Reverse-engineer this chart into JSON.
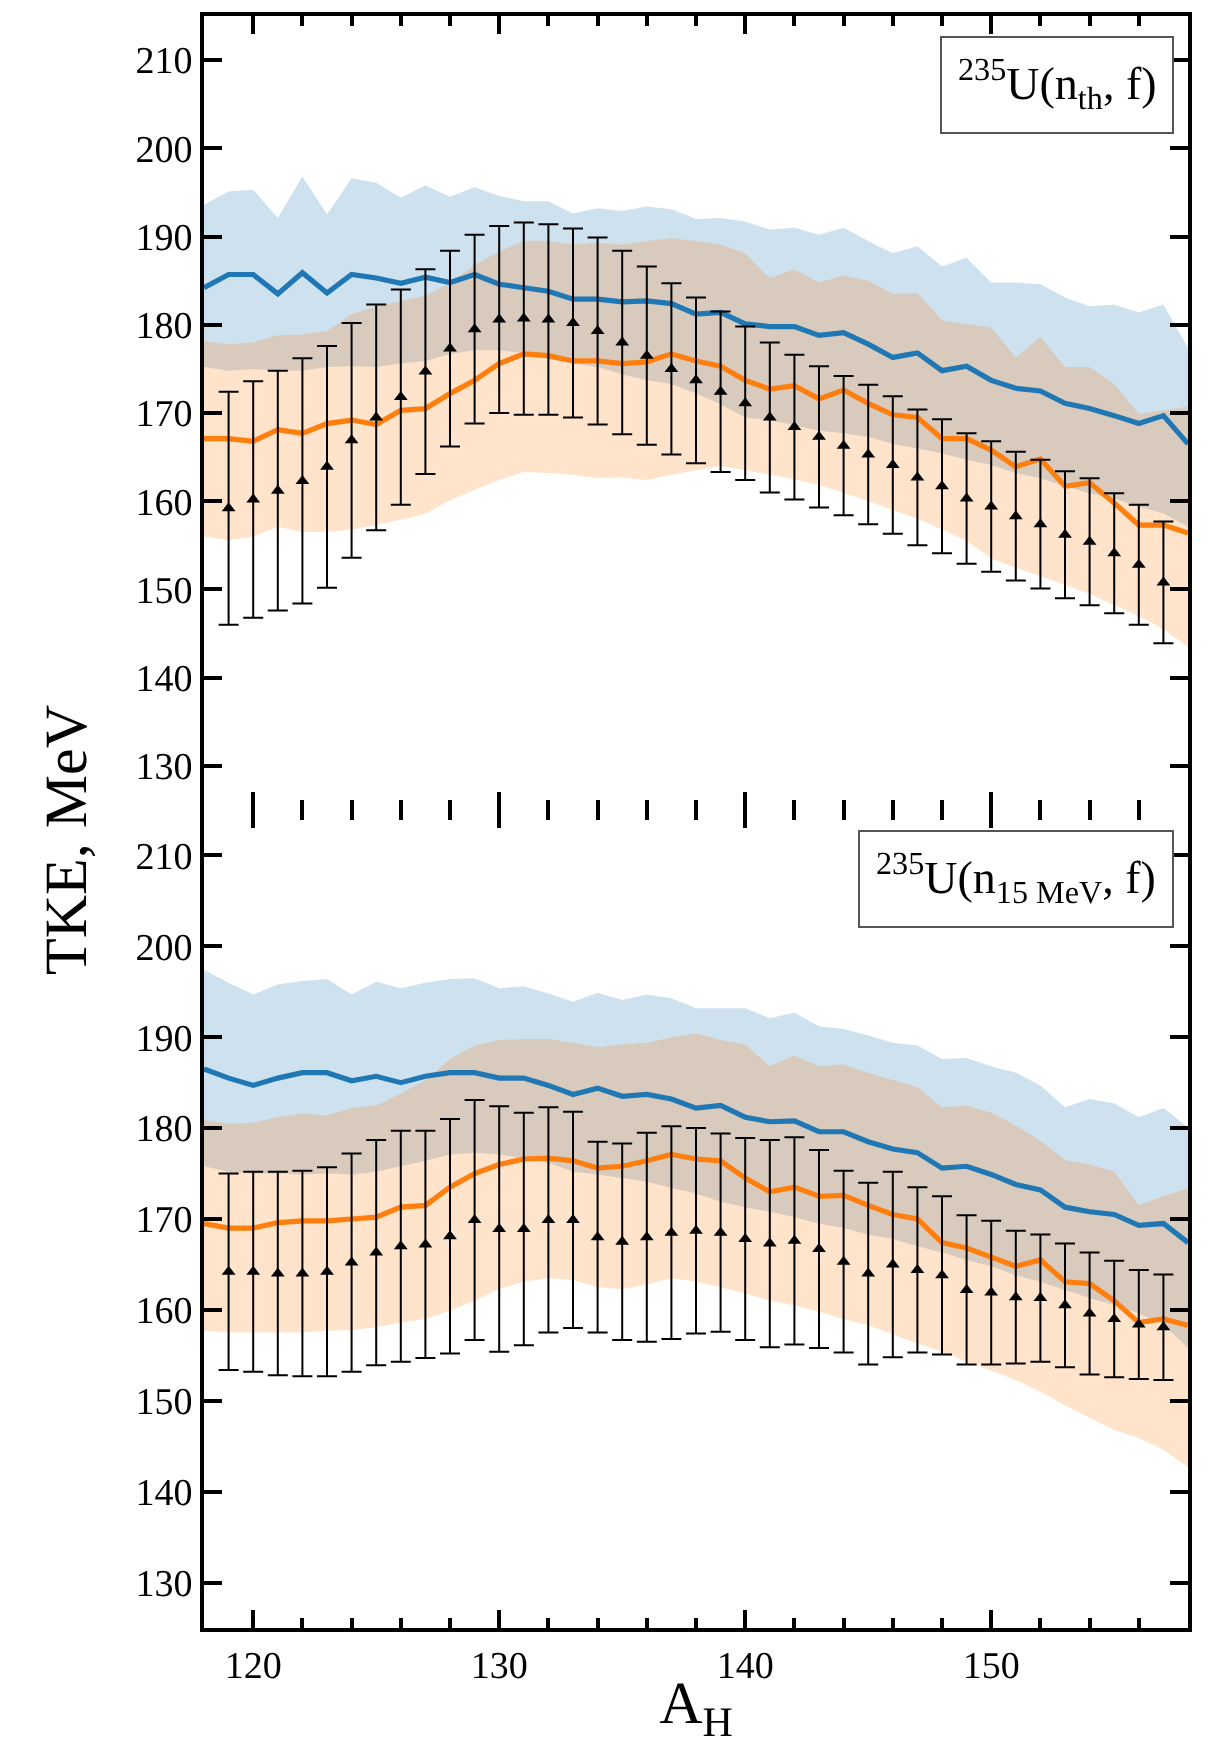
{
  "chart_data": [
    {
      "type": "line",
      "ylabel": "TKE, MeV",
      "annotations": [
        "$^{235}$U(n$_{th}$, f)"
      ],
      "tick_labels": "y",
      "xlim": [
        118,
        158
      ],
      "ylim": [
        125,
        215
      ],
      "xticks": [
        120,
        130,
        140,
        150
      ],
      "yticks": [
        130,
        140,
        150,
        160,
        170,
        180,
        190,
        200,
        210
      ],
      "x": [
        118,
        119,
        120,
        121,
        122,
        123,
        124,
        125,
        126,
        127,
        128,
        129,
        130,
        131,
        132,
        133,
        134,
        135,
        136,
        137,
        138,
        139,
        140,
        141,
        142,
        143,
        144,
        145,
        146,
        147,
        148,
        149,
        150,
        151,
        152,
        153,
        154,
        155,
        156,
        157,
        158
      ],
      "series": [
        {
          "color": "#1f77b4",
          "values": [
            184.2,
            185.7,
            185.7,
            183.5,
            185.9,
            183.6,
            185.7,
            185.3,
            184.7,
            185.4,
            184.8,
            185.7,
            184.6,
            184.2,
            183.8,
            182.9,
            182.9,
            182.6,
            182.7,
            182.4,
            181.2,
            181.4,
            180.1,
            179.8,
            179.8,
            178.8,
            179.1,
            177.8,
            176.3,
            176.8,
            174.8,
            175.3,
            173.7,
            172.8,
            172.5,
            171.1,
            170.5,
            169.7,
            168.8,
            169.7,
            166.5
          ],
          "upper": [
            193.6,
            195.1,
            195.3,
            192.1,
            196.8,
            192.5,
            196.6,
            196.1,
            194.4,
            195.8,
            194.5,
            195.6,
            194.6,
            194.0,
            194.0,
            192.6,
            193.2,
            192.9,
            193.4,
            193.1,
            192.0,
            192.1,
            191.7,
            190.8,
            191.0,
            190.2,
            191.0,
            189.5,
            188.1,
            188.9,
            186.6,
            187.6,
            184.8,
            184.8,
            184.6,
            183.1,
            182.1,
            182.3,
            181.4,
            182.3,
            177.4
          ],
          "lower": [
            175.2,
            174.8,
            175.0,
            174.8,
            174.8,
            175.2,
            175.3,
            175.2,
            175.6,
            175.9,
            176.7,
            177.1,
            177.1,
            176.8,
            176.1,
            175.6,
            175.2,
            174.4,
            173.7,
            173.3,
            172.2,
            171.0,
            169.5,
            169.2,
            168.6,
            168.0,
            167.7,
            167.3,
            166.5,
            166.0,
            165.4,
            164.7,
            164.1,
            163.2,
            162.6,
            161.7,
            160.9,
            160.3,
            159.4,
            158.6,
            157.1
          ]
        },
        {
          "color": "#ff7f0e",
          "values": [
            167.1,
            167.1,
            166.8,
            168.1,
            167.7,
            168.8,
            169.2,
            168.7,
            170.3,
            170.5,
            172.2,
            173.7,
            175.6,
            176.7,
            176.5,
            175.9,
            175.9,
            175.6,
            175.8,
            176.7,
            175.9,
            175.3,
            173.7,
            172.7,
            173.1,
            171.6,
            172.6,
            171.1,
            169.8,
            169.5,
            167.1,
            167.1,
            165.8,
            163.9,
            164.8,
            161.7,
            162.1,
            159.8,
            157.3,
            157.3,
            156.4
          ],
          "upper": [
            178.2,
            177.8,
            178.0,
            178.8,
            178.9,
            179.3,
            181.2,
            182.1,
            182.7,
            183.3,
            184.7,
            186.8,
            188.3,
            189.5,
            189.5,
            189.1,
            189.3,
            189.1,
            189.5,
            189.8,
            189.5,
            189.1,
            188.1,
            185.3,
            186.3,
            184.8,
            185.6,
            185.0,
            183.5,
            183.6,
            180.5,
            180.1,
            179.7,
            176.3,
            178.6,
            175.2,
            175.2,
            173.3,
            169.9,
            170.3,
            170.7
          ],
          "lower": [
            156.0,
            155.6,
            156.0,
            157.1,
            156.5,
            156.5,
            156.8,
            157.3,
            157.9,
            158.6,
            160.1,
            161.3,
            162.4,
            163.3,
            163.2,
            163.0,
            162.6,
            162.7,
            162.4,
            163.0,
            163.5,
            164.0,
            163.5,
            163.0,
            162.5,
            161.8,
            161.0,
            160.0,
            159.0,
            158.0,
            156.8,
            155.5,
            153.5,
            152.5,
            151.5,
            150.5,
            149.5,
            148.2,
            147.0,
            145.5,
            143.5
          ]
        },
        {
          "type": "scatter",
          "color": "#000000",
          "marker": "triangle",
          "x": [
            119,
            120,
            121,
            122,
            123,
            124,
            125,
            126,
            127,
            128,
            129,
            130,
            131,
            132,
            133,
            134,
            135,
            136,
            137,
            138,
            139,
            140,
            141,
            142,
            143,
            144,
            145,
            146,
            147,
            148,
            149,
            150,
            151,
            152,
            153,
            154,
            155,
            156,
            157
          ],
          "values": [
            159.2,
            160.2,
            161.2,
            162.3,
            163.9,
            166.9,
            169.5,
            171.8,
            174.7,
            177.3,
            179.5,
            180.6,
            180.7,
            180.6,
            180.2,
            179.3,
            178.0,
            176.5,
            175.0,
            173.7,
            172.4,
            171.1,
            169.5,
            168.4,
            167.3,
            166.3,
            165.3,
            164.1,
            162.7,
            161.7,
            160.3,
            159.4,
            158.3,
            157.4,
            156.2,
            155.4,
            154.1,
            152.8,
            150.8
          ],
          "errors": [
            13.2,
            13.4,
            13.6,
            13.9,
            13.7,
            13.3,
            12.8,
            12.2,
            11.6,
            11.1,
            10.7,
            10.6,
            10.9,
            10.8,
            10.7,
            10.6,
            10.4,
            10.1,
            9.7,
            9.4,
            9.1,
            8.7,
            8.5,
            8.2,
            8.0,
            7.9,
            7.9,
            7.8,
            7.7,
            7.6,
            7.4,
            7.4,
            7.3,
            7.3,
            7.2,
            7.2,
            6.8,
            6.8,
            6.9
          ]
        }
      ]
    },
    {
      "type": "line",
      "xlabel": "A$_{H}$",
      "annotations": [
        "$^{235}$U(n$_{15 MeV}$, f)"
      ],
      "xlim": [
        118,
        158
      ],
      "ylim": [
        125,
        215
      ],
      "xticks": [
        120,
        130,
        140,
        150
      ],
      "yticks": [
        130,
        140,
        150,
        160,
        170,
        180,
        190,
        200,
        210
      ],
      "x": [
        118,
        119,
        120,
        121,
        122,
        123,
        124,
        125,
        126,
        127,
        128,
        129,
        130,
        131,
        132,
        133,
        134,
        135,
        136,
        137,
        138,
        139,
        140,
        141,
        142,
        143,
        144,
        145,
        146,
        147,
        148,
        149,
        150,
        151,
        152,
        153,
        154,
        155,
        156,
        157,
        158
      ],
      "series": [
        {
          "color": "#1f77b4",
          "values": [
            186.5,
            185.5,
            184.7,
            185.5,
            186.1,
            186.1,
            185.2,
            185.7,
            185.0,
            185.7,
            186.1,
            186.1,
            185.5,
            185.5,
            184.7,
            183.7,
            184.4,
            183.5,
            183.7,
            183.2,
            182.2,
            182.5,
            181.2,
            180.7,
            180.8,
            179.6,
            179.6,
            178.5,
            177.7,
            177.3,
            175.6,
            175.8,
            174.9,
            173.8,
            173.2,
            171.3,
            170.8,
            170.5,
            169.3,
            169.5,
            167.4
          ],
          "upper": [
            197.4,
            196.0,
            194.7,
            195.8,
            196.2,
            196.4,
            194.7,
            196.1,
            195.4,
            196.0,
            196.4,
            196.5,
            195.4,
            195.6,
            194.8,
            193.9,
            194.9,
            194.1,
            194.7,
            194.3,
            193.2,
            193.2,
            193.2,
            192.1,
            192.7,
            191.2,
            190.9,
            190.2,
            189.4,
            189.1,
            187.6,
            187.7,
            186.8,
            186.1,
            184.7,
            182.3,
            183.2,
            182.7,
            181.2,
            182.2,
            180.1
          ],
          "lower": [
            175.8,
            175.2,
            175.0,
            175.0,
            174.9,
            175.0,
            174.9,
            175.2,
            175.8,
            176.4,
            177.1,
            177.3,
            177.1,
            176.7,
            176.2,
            175.2,
            174.9,
            174.5,
            174.1,
            173.4,
            172.8,
            171.9,
            171.3,
            170.8,
            170.2,
            169.5,
            169.0,
            168.3,
            167.8,
            167.0,
            166.3,
            165.5,
            164.8,
            163.8,
            163.1,
            162.2,
            161.3,
            160.5,
            159.6,
            158.4,
            155.8
          ]
        },
        {
          "color": "#ff7f0e",
          "values": [
            169.5,
            169.0,
            169.0,
            169.6,
            169.8,
            169.8,
            170.0,
            170.2,
            171.3,
            171.5,
            173.5,
            175.0,
            176.0,
            176.6,
            176.7,
            176.4,
            175.6,
            175.8,
            176.4,
            177.1,
            176.6,
            176.4,
            174.5,
            173.0,
            173.5,
            172.5,
            172.6,
            171.5,
            170.5,
            170.0,
            167.4,
            166.8,
            165.8,
            164.8,
            165.5,
            163.1,
            162.9,
            161.0,
            158.6,
            159.0,
            158.3
          ],
          "upper": [
            180.9,
            180.5,
            180.6,
            181.2,
            181.6,
            181.4,
            182.2,
            182.5,
            183.8,
            185.3,
            187.6,
            189.1,
            189.7,
            189.8,
            189.8,
            189.4,
            188.9,
            189.2,
            189.4,
            190.0,
            190.4,
            189.7,
            189.2,
            186.8,
            188.0,
            186.8,
            187.0,
            186.1,
            185.3,
            184.5,
            182.3,
            182.5,
            181.7,
            180.3,
            178.6,
            176.5,
            176.0,
            175.2,
            171.5,
            172.5,
            173.4
          ],
          "lower": [
            157.7,
            157.5,
            157.5,
            157.5,
            157.5,
            157.7,
            157.8,
            158.1,
            158.6,
            159.0,
            159.9,
            161.0,
            162.3,
            163.1,
            163.5,
            163.3,
            162.5,
            162.3,
            162.8,
            163.5,
            163.1,
            162.5,
            161.8,
            161.0,
            160.5,
            159.8,
            159.0,
            158.3,
            157.3,
            156.3,
            155.4,
            154.3,
            153.3,
            152.3,
            151.0,
            149.5,
            148.1,
            146.8,
            145.9,
            144.6,
            142.7
          ]
        },
        {
          "type": "scatter",
          "color": "#000000",
          "marker": "triangle",
          "x": [
            119,
            120,
            121,
            122,
            123,
            124,
            125,
            126,
            127,
            128,
            129,
            130,
            131,
            132,
            133,
            134,
            135,
            136,
            137,
            138,
            139,
            140,
            141,
            142,
            143,
            144,
            145,
            146,
            147,
            148,
            149,
            150,
            151,
            152,
            153,
            154,
            155,
            156,
            157
          ],
          "values": [
            164.2,
            164.2,
            164.0,
            164.0,
            164.2,
            165.2,
            166.3,
            167.0,
            167.2,
            168.1,
            169.9,
            168.9,
            168.9,
            169.9,
            169.9,
            168.0,
            167.5,
            168.0,
            168.5,
            168.7,
            168.5,
            167.8,
            167.3,
            167.6,
            166.7,
            165.3,
            164.0,
            165.0,
            164.4,
            163.8,
            162.2,
            161.9,
            161.4,
            161.3,
            160.5,
            159.6,
            159.0,
            158.4,
            158.1
          ],
          "errors": [
            10.8,
            11.0,
            11.2,
            11.3,
            11.5,
            12.0,
            12.4,
            12.7,
            12.5,
            12.9,
            13.2,
            13.5,
            12.8,
            12.4,
            11.9,
            10.5,
            10.8,
            11.5,
            11.7,
            11.3,
            10.9,
            11.1,
            11.4,
            11.4,
            10.9,
            10.0,
            10.0,
            10.2,
            9.1,
            8.7,
            8.2,
            7.9,
            7.3,
            7.0,
            6.8,
            6.7,
            6.4,
            6.0,
            5.8
          ]
        }
      ]
    }
  ]
}
